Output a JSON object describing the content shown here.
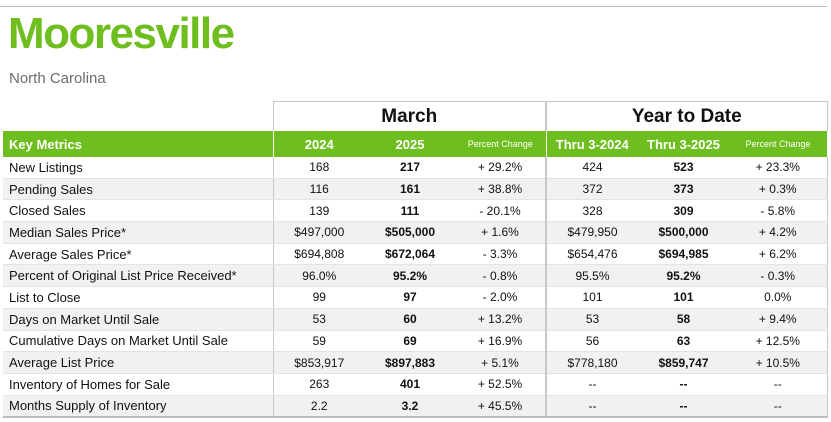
{
  "header": {
    "city": "Mooresville",
    "state": "North Carolina"
  },
  "groups": {
    "month": "March",
    "ytd": "Year to Date"
  },
  "columns": {
    "label": "Key Metrics",
    "prior": "2024",
    "current": "2025",
    "pct": "Percent Change",
    "ytd_prior": "Thru 3-2024",
    "ytd_current": "Thru 3-2025",
    "ytd_pct": "Percent Change"
  },
  "rows": [
    {
      "label": "New Listings",
      "prior": "168",
      "current": "217",
      "pct": "+ 29.2%",
      "ytd_prior": "424",
      "ytd_current": "523",
      "ytd_pct": "+ 23.3%"
    },
    {
      "label": "Pending Sales",
      "prior": "116",
      "current": "161",
      "pct": "+ 38.8%",
      "ytd_prior": "372",
      "ytd_current": "373",
      "ytd_pct": "+ 0.3%"
    },
    {
      "label": "Closed Sales",
      "prior": "139",
      "current": "111",
      "pct": "- 20.1%",
      "ytd_prior": "328",
      "ytd_current": "309",
      "ytd_pct": "- 5.8%"
    },
    {
      "label": "Median Sales Price*",
      "prior": "$497,000",
      "current": "$505,000",
      "pct": "+ 1.6%",
      "ytd_prior": "$479,950",
      "ytd_current": "$500,000",
      "ytd_pct": "+ 4.2%"
    },
    {
      "label": "Average Sales Price*",
      "prior": "$694,808",
      "current": "$672,064",
      "pct": "- 3.3%",
      "ytd_prior": "$654,476",
      "ytd_current": "$694,985",
      "ytd_pct": "+ 6.2%"
    },
    {
      "label": "Percent of Original List Price Received*",
      "prior": "96.0%",
      "current": "95.2%",
      "pct": "- 0.8%",
      "ytd_prior": "95.5%",
      "ytd_current": "95.2%",
      "ytd_pct": "- 0.3%"
    },
    {
      "label": "List to Close",
      "prior": "99",
      "current": "97",
      "pct": "- 2.0%",
      "ytd_prior": "101",
      "ytd_current": "101",
      "ytd_pct": "0.0%"
    },
    {
      "label": "Days on Market Until Sale",
      "prior": "53",
      "current": "60",
      "pct": "+ 13.2%",
      "ytd_prior": "53",
      "ytd_current": "58",
      "ytd_pct": "+ 9.4%"
    },
    {
      "label": "Cumulative Days on Market Until Sale",
      "prior": "59",
      "current": "69",
      "pct": "+ 16.9%",
      "ytd_prior": "56",
      "ytd_current": "63",
      "ytd_pct": "+ 12.5%"
    },
    {
      "label": "Average List Price",
      "prior": "$853,917",
      "current": "$897,883",
      "pct": "+ 5.1%",
      "ytd_prior": "$778,180",
      "ytd_current": "$859,747",
      "ytd_pct": "+ 10.5%"
    },
    {
      "label": "Inventory of Homes for Sale",
      "prior": "263",
      "current": "401",
      "pct": "+ 52.5%",
      "ytd_prior": "--",
      "ytd_current": "--",
      "ytd_pct": "--"
    },
    {
      "label": "Months Supply of Inventory",
      "prior": "2.2",
      "current": "3.2",
      "pct": "+ 45.5%",
      "ytd_prior": "--",
      "ytd_current": "--",
      "ytd_pct": "--"
    }
  ],
  "colors": {
    "accent": "#6fbe1f",
    "subtitle": "#6d6d6d",
    "row_stripe": "#f1f1f1"
  }
}
